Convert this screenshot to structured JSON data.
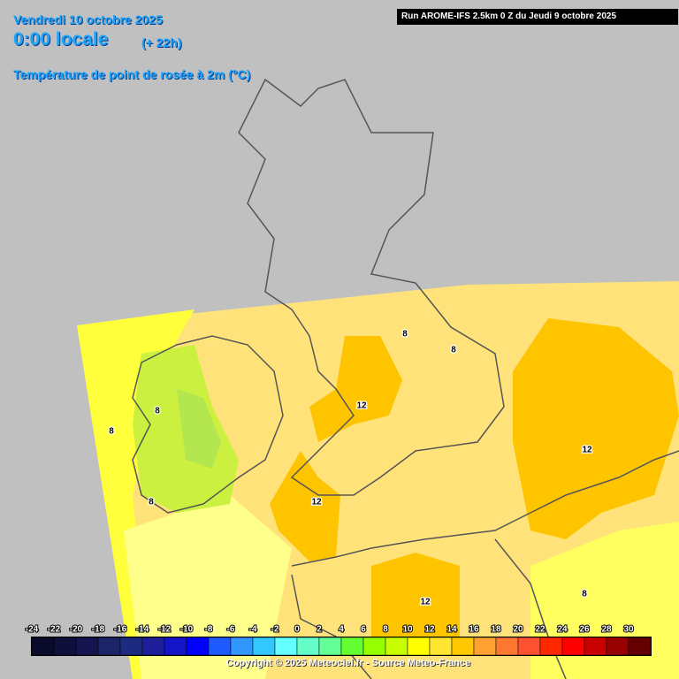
{
  "header": {
    "date": "Vendredi 10 octobre 2025",
    "time": "0:00 locale",
    "offset": "(+ 22h)",
    "variable": "Température de point de rosée à 2m (°C)",
    "run": "Run AROME-IFS 2.5km 0 Z du Jeudi 9 octobre 2025"
  },
  "contour_labels": [
    "8",
    "8",
    "12",
    "8",
    "8",
    "12",
    "8",
    "12",
    "8",
    "12"
  ],
  "legend": {
    "ticks": [
      -24,
      -22,
      -20,
      -18,
      -16,
      -14,
      -12,
      -10,
      -8,
      -6,
      -4,
      -2,
      0,
      2,
      4,
      6,
      8,
      10,
      12,
      14,
      16,
      18,
      20,
      22,
      24,
      26,
      28,
      30
    ],
    "colors": [
      "#0a0a2a",
      "#0f0f3c",
      "#14144f",
      "#1a2466",
      "#1e2a80",
      "#1e1e9a",
      "#1414c8",
      "#0000ff",
      "#1e5aff",
      "#3296ff",
      "#32c8ff",
      "#64ffff",
      "#64ffc8",
      "#64ff96",
      "#64ff32",
      "#96ff00",
      "#c8ff00",
      "#ffff00",
      "#ffe632",
      "#ffc800",
      "#ffa032",
      "#ff7832",
      "#ff5032",
      "#ff2800",
      "#ff0000",
      "#c80000",
      "#960000",
      "#640000"
    ]
  },
  "copyright": "Copyright © 2025 Meteociel.fr - Source Meteo-France"
}
